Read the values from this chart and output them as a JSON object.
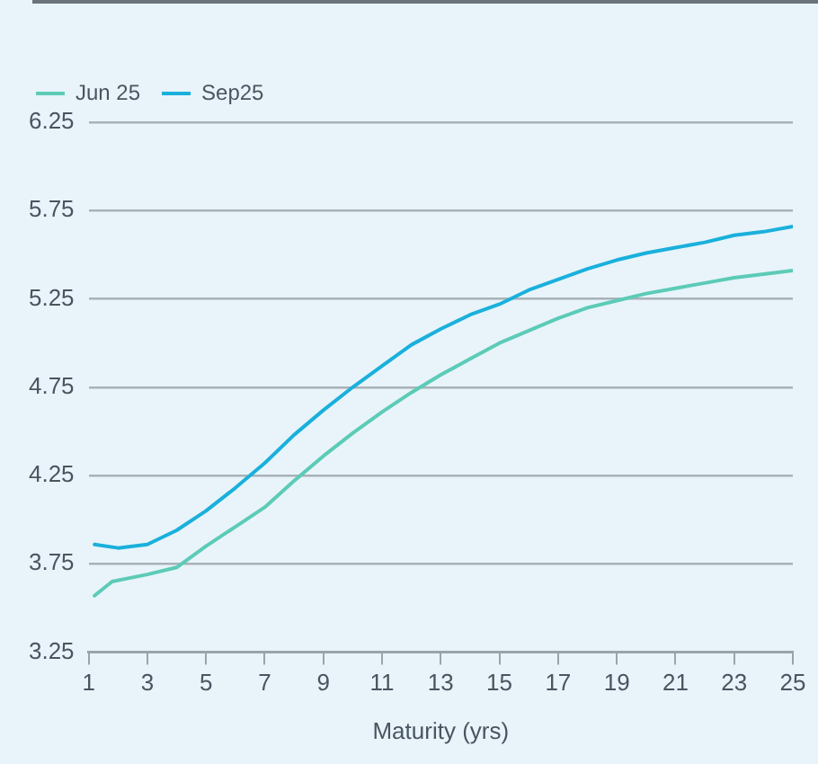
{
  "chart_data": {
    "type": "line",
    "xlabel": "Maturity (yrs)",
    "xlim": [
      1,
      25
    ],
    "xticks": [
      1,
      3,
      5,
      7,
      9,
      11,
      13,
      15,
      17,
      19,
      21,
      23,
      25
    ],
    "ylim": [
      3.25,
      6.25
    ],
    "yticks": [
      3.25,
      3.75,
      4.25,
      4.75,
      5.25,
      5.75,
      6.25
    ],
    "grid": "y",
    "legend": "top left",
    "marker": "none",
    "line_style": "solid",
    "series": [
      {
        "name": "Jun 25",
        "color": "#5ccbb7",
        "x": [
          1.2,
          1.8,
          3,
          4,
          5,
          6,
          7,
          8,
          9,
          10,
          11,
          12,
          13,
          14,
          15,
          16,
          17,
          18,
          19,
          20,
          21,
          22,
          23,
          24,
          25
        ],
        "values": [
          3.57,
          3.65,
          3.69,
          3.73,
          3.85,
          3.96,
          4.07,
          4.22,
          4.36,
          4.49,
          4.61,
          4.72,
          4.82,
          4.91,
          5.0,
          5.07,
          5.14,
          5.2,
          5.24,
          5.28,
          5.31,
          5.34,
          5.37,
          5.39,
          5.41
        ]
      },
      {
        "name": "Sep25",
        "color": "#1ab0dc",
        "x": [
          1.2,
          2,
          3,
          4,
          5,
          6,
          7,
          8,
          9,
          10,
          11,
          12,
          13,
          14,
          15,
          16,
          17,
          18,
          19,
          20,
          21,
          22,
          23,
          24,
          25
        ],
        "values": [
          3.86,
          3.84,
          3.86,
          3.94,
          4.05,
          4.18,
          4.32,
          4.48,
          4.62,
          4.75,
          4.87,
          4.99,
          5.08,
          5.16,
          5.22,
          5.3,
          5.36,
          5.42,
          5.47,
          5.51,
          5.54,
          5.57,
          5.61,
          5.63,
          5.66
        ]
      }
    ]
  }
}
